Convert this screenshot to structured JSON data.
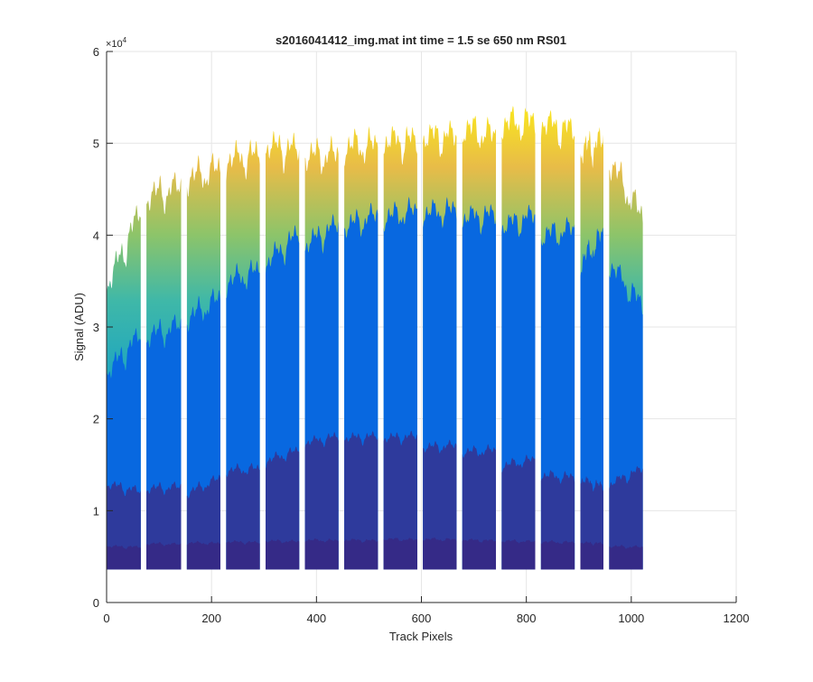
{
  "chart_data": {
    "type": "area",
    "title": "s2016041412_img.mat int time = 1.5 se  650 nm RS01",
    "xlabel": "Track Pixels",
    "ylabel": "Signal (ADU)",
    "xlim": [
      0,
      1200
    ],
    "ylim": [
      0,
      60000
    ],
    "xticks": [
      0,
      200,
      400,
      600,
      800,
      1000,
      1200
    ],
    "yticks": [
      0,
      10000,
      20000,
      30000,
      40000,
      50000,
      60000
    ],
    "xtick_labels": [
      "0",
      "200",
      "400",
      "600",
      "800",
      "1000",
      "1200"
    ],
    "ytick_labels": [
      "0",
      "1",
      "2",
      "3",
      "4",
      "5",
      "6"
    ],
    "y_exponent_base": "×10",
    "y_exponent_power": "4",
    "grid": true,
    "colormap": "parula",
    "baseline": 3600,
    "gap_centers": [
      70,
      147,
      222,
      297,
      372,
      447,
      522,
      597,
      672,
      747,
      822,
      897,
      952
    ],
    "band_segments": [
      {
        "x": [
          0,
          65
        ],
        "top": [
          33000,
          42500
        ],
        "mid": [
          24000,
          29000
        ],
        "low": [
          12500,
          12000
        ],
        "floor": [
          6000,
          6000
        ]
      },
      {
        "x": [
          76,
          142
        ],
        "top": [
          43000,
          45000
        ],
        "mid": [
          28000,
          30000
        ],
        "low": [
          12000,
          12500
        ],
        "floor": [
          6300,
          6300
        ]
      },
      {
        "x": [
          153,
          217
        ],
        "top": [
          45000,
          47000
        ],
        "mid": [
          30000,
          33000
        ],
        "low": [
          11500,
          13500
        ],
        "floor": [
          6400,
          6400
        ]
      },
      {
        "x": [
          228,
          292
        ],
        "top": [
          47000,
          48500
        ],
        "mid": [
          34000,
          36000
        ],
        "low": [
          14000,
          14500
        ],
        "floor": [
          6500,
          6500
        ]
      },
      {
        "x": [
          303,
          367
        ],
        "top": [
          48500,
          49000
        ],
        "mid": [
          36000,
          40000
        ],
        "low": [
          15000,
          16500
        ],
        "floor": [
          6600,
          6600
        ]
      },
      {
        "x": [
          378,
          442
        ],
        "top": [
          47500,
          48500
        ],
        "mid": [
          38000,
          41000
        ],
        "low": [
          17000,
          18000
        ],
        "floor": [
          6700,
          6700
        ]
      },
      {
        "x": [
          453,
          517
        ],
        "top": [
          48500,
          49500
        ],
        "mid": [
          40000,
          42000
        ],
        "low": [
          17500,
          18000
        ],
        "floor": [
          6700,
          6700
        ]
      },
      {
        "x": [
          528,
          592
        ],
        "top": [
          49000,
          50000
        ],
        "mid": [
          41000,
          42500
        ],
        "low": [
          17500,
          18000
        ],
        "floor": [
          6800,
          6800
        ]
      },
      {
        "x": [
          603,
          667
        ],
        "top": [
          49500,
          50500
        ],
        "mid": [
          41500,
          42500
        ],
        "low": [
          16500,
          17000
        ],
        "floor": [
          6800,
          6800
        ]
      },
      {
        "x": [
          678,
          742
        ],
        "top": [
          50500,
          50500
        ],
        "mid": [
          41000,
          42000
        ],
        "low": [
          16000,
          16500
        ],
        "floor": [
          6700,
          6700
        ]
      },
      {
        "x": [
          753,
          817
        ],
        "top": [
          51000,
          52000
        ],
        "mid": [
          40000,
          42000
        ],
        "low": [
          14500,
          15500
        ],
        "floor": [
          6600,
          6600
        ]
      },
      {
        "x": [
          828,
          892
        ],
        "top": [
          51000,
          51000
        ],
        "mid": [
          39000,
          40500
        ],
        "low": [
          13500,
          13500
        ],
        "floor": [
          6500,
          6500
        ]
      },
      {
        "x": [
          903,
          947
        ],
        "top": [
          48000,
          50000
        ],
        "mid": [
          36000,
          40000
        ],
        "low": [
          13000,
          12500
        ],
        "floor": [
          6400,
          6400
        ]
      },
      {
        "x": [
          958,
          1022
        ],
        "top": [
          47000,
          41500
        ],
        "mid": [
          36000,
          32000
        ],
        "low": [
          12500,
          14500
        ],
        "floor": [
          6000,
          6000
        ]
      }
    ],
    "colors": {
      "floor": "#352a87",
      "low": "#2e3a9c",
      "mid": "#0868e0",
      "top_low": "#14a0c8",
      "top_mid": "#3fb8a8",
      "top_green": "#8cc46a",
      "top_orange": "#e8bc48",
      "top_yellow": "#f7e024",
      "grid": "#e6e6e6",
      "axis": "#262626"
    }
  }
}
